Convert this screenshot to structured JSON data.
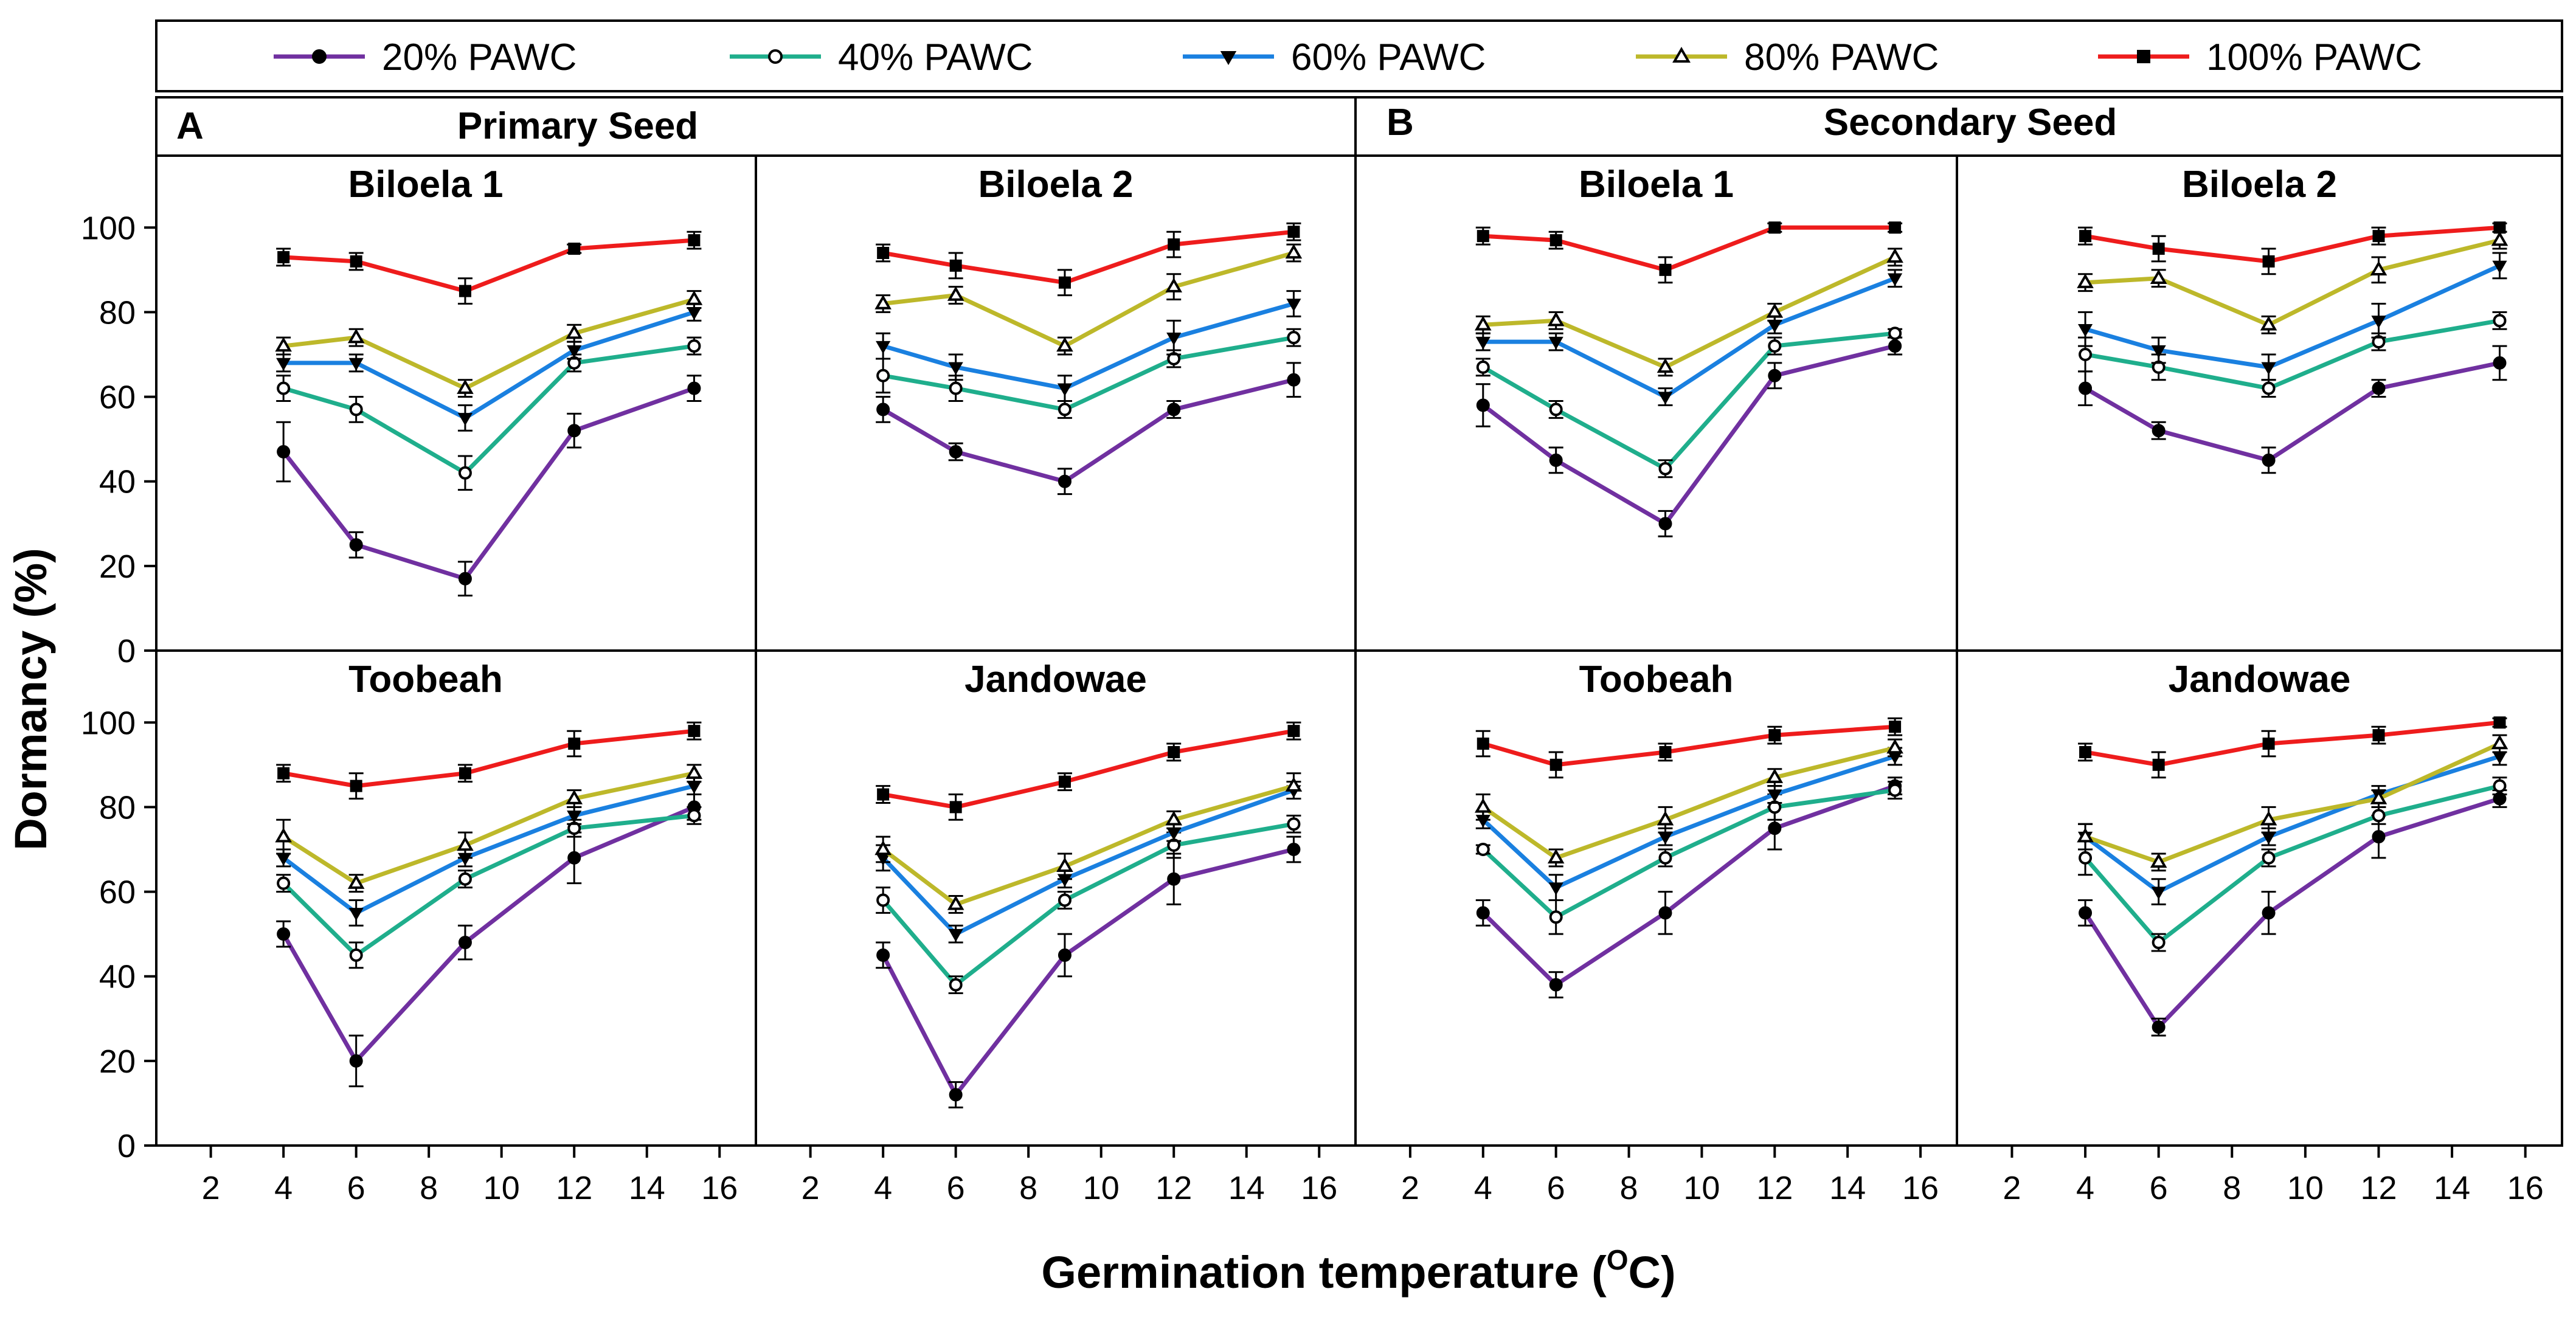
{
  "figure": {
    "ylabel": "Dormancy (%)",
    "xlabel_main": "Germination temperature (",
    "xlabel_sup": "O",
    "xlabel_end": "C)"
  },
  "legend": [
    {
      "label": "20% PAWC",
      "color": "#7030a0",
      "marker": "filled-circle"
    },
    {
      "label": "40% PAWC",
      "color": "#1fae8c",
      "marker": "open-circle"
    },
    {
      "label": "60% PAWC",
      "color": "#1a80e0",
      "marker": "filled-triangle-down"
    },
    {
      "label": "80% PAWC",
      "color": "#bdb82a",
      "marker": "open-triangle-up"
    },
    {
      "label": "100% PAWC",
      "color": "#ee1c1c",
      "marker": "filled-square"
    }
  ],
  "sections": [
    {
      "letter": "A",
      "title": "Primary Seed"
    },
    {
      "letter": "B",
      "title": "Secondary Seed"
    }
  ],
  "chart_data": {
    "type": "line",
    "x": [
      4,
      6,
      9,
      12,
      15.3
    ],
    "xlim": [
      0.5,
      17
    ],
    "xticks": [
      2,
      4,
      6,
      8,
      10,
      12,
      14,
      16
    ],
    "ylim": [
      0,
      117
    ],
    "yticks": [
      0,
      20,
      40,
      60,
      80,
      100
    ],
    "xlabel": "Germination temperature (OC)",
    "ylabel": "Dormancy (%)",
    "series_names": [
      "20% PAWC",
      "40% PAWC",
      "60% PAWC",
      "80% PAWC",
      "100% PAWC"
    ],
    "panels": [
      {
        "title": "Biloela 1",
        "section": "Primary Seed",
        "col": 0,
        "row": 0,
        "series": [
          {
            "name": "20% PAWC",
            "values": [
              47,
              25,
              17,
              52,
              62
            ],
            "errors": [
              7,
              3,
              4,
              4,
              3
            ]
          },
          {
            "name": "40% PAWC",
            "values": [
              62,
              57,
              42,
              68,
              72
            ],
            "errors": [
              3,
              3,
              4,
              2,
              2
            ]
          },
          {
            "name": "60% PAWC",
            "values": [
              68,
              68,
              55,
              71,
              80
            ],
            "errors": [
              2,
              2,
              3,
              2,
              2
            ]
          },
          {
            "name": "80% PAWC",
            "values": [
              72,
              74,
              62,
              75,
              83
            ],
            "errors": [
              2,
              2,
              2,
              2,
              2
            ]
          },
          {
            "name": "100% PAWC",
            "values": [
              93,
              92,
              85,
              95,
              97
            ],
            "errors": [
              2,
              2,
              3,
              1,
              2
            ]
          }
        ]
      },
      {
        "title": "Biloela 2",
        "section": "Primary Seed",
        "col": 1,
        "row": 0,
        "series": [
          {
            "name": "20% PAWC",
            "values": [
              57,
              47,
              40,
              57,
              64
            ],
            "errors": [
              3,
              2,
              3,
              2,
              4
            ]
          },
          {
            "name": "40% PAWC",
            "values": [
              65,
              62,
              57,
              69,
              74
            ],
            "errors": [
              4,
              3,
              2,
              2,
              2
            ]
          },
          {
            "name": "60% PAWC",
            "values": [
              72,
              67,
              62,
              74,
              82
            ],
            "errors": [
              3,
              3,
              3,
              4,
              3
            ]
          },
          {
            "name": "80% PAWC",
            "values": [
              82,
              84,
              72,
              86,
              94
            ],
            "errors": [
              2,
              2,
              2,
              3,
              2
            ]
          },
          {
            "name": "100% PAWC",
            "values": [
              94,
              91,
              87,
              96,
              99
            ],
            "errors": [
              2,
              3,
              3,
              3,
              2
            ]
          }
        ]
      },
      {
        "title": "Biloela 1",
        "section": "Secondary Seed",
        "col": 2,
        "row": 0,
        "series": [
          {
            "name": "20% PAWC",
            "values": [
              58,
              45,
              30,
              65,
              72
            ],
            "errors": [
              5,
              3,
              3,
              3,
              2
            ]
          },
          {
            "name": "40% PAWC",
            "values": [
              67,
              57,
              43,
              72,
              75
            ],
            "errors": [
              2,
              2,
              2,
              2,
              1
            ]
          },
          {
            "name": "60% PAWC",
            "values": [
              73,
              73,
              60,
              77,
              88
            ],
            "errors": [
              2,
              2,
              2,
              2,
              2
            ]
          },
          {
            "name": "80% PAWC",
            "values": [
              77,
              78,
              67,
              80,
              93
            ],
            "errors": [
              2,
              2,
              2,
              2,
              2
            ]
          },
          {
            "name": "100% PAWC",
            "values": [
              98,
              97,
              90,
              100,
              100
            ],
            "errors": [
              2,
              2,
              3,
              1,
              1
            ]
          }
        ]
      },
      {
        "title": "Biloela 2",
        "section": "Secondary Seed",
        "col": 3,
        "row": 0,
        "series": [
          {
            "name": "20% PAWC",
            "values": [
              62,
              52,
              45,
              62,
              68
            ],
            "errors": [
              4,
              2,
              3,
              2,
              4
            ]
          },
          {
            "name": "40% PAWC",
            "values": [
              70,
              67,
              62,
              73,
              78
            ],
            "errors": [
              4,
              3,
              2,
              2,
              2
            ]
          },
          {
            "name": "60% PAWC",
            "values": [
              76,
              71,
              67,
              78,
              91
            ],
            "errors": [
              4,
              3,
              3,
              4,
              3
            ]
          },
          {
            "name": "80% PAWC",
            "values": [
              87,
              88,
              77,
              90,
              97
            ],
            "errors": [
              2,
              2,
              2,
              3,
              2
            ]
          },
          {
            "name": "100% PAWC",
            "values": [
              98,
              95,
              92,
              98,
              100
            ],
            "errors": [
              2,
              3,
              3,
              2,
              1
            ]
          }
        ]
      },
      {
        "title": "Toobeah",
        "section": "Primary Seed",
        "col": 0,
        "row": 1,
        "series": [
          {
            "name": "20% PAWC",
            "values": [
              50,
              20,
              48,
              68,
              80
            ],
            "errors": [
              3,
              6,
              4,
              6,
              3
            ]
          },
          {
            "name": "40% PAWC",
            "values": [
              62,
              45,
              63,
              75,
              78
            ],
            "errors": [
              2,
              3,
              2,
              2,
              2
            ]
          },
          {
            "name": "60% PAWC",
            "values": [
              68,
              55,
              68,
              78,
              85
            ],
            "errors": [
              2,
              3,
              2,
              2,
              2
            ]
          },
          {
            "name": "80% PAWC",
            "values": [
              73,
              62,
              71,
              82,
              88
            ],
            "errors": [
              4,
              2,
              3,
              2,
              2
            ]
          },
          {
            "name": "100% PAWC",
            "values": [
              88,
              85,
              88,
              95,
              98
            ],
            "errors": [
              2,
              3,
              2,
              3,
              2
            ]
          }
        ]
      },
      {
        "title": "Jandowae",
        "section": "Primary Seed",
        "col": 1,
        "row": 1,
        "series": [
          {
            "name": "20% PAWC",
            "values": [
              45,
              12,
              45,
              63,
              70
            ],
            "errors": [
              3,
              3,
              5,
              6,
              3
            ]
          },
          {
            "name": "40% PAWC",
            "values": [
              58,
              38,
              58,
              71,
              76
            ],
            "errors": [
              3,
              2,
              2,
              3,
              2
            ]
          },
          {
            "name": "60% PAWC",
            "values": [
              68,
              50,
              63,
              74,
              84
            ],
            "errors": [
              3,
              2,
              2,
              2,
              2
            ]
          },
          {
            "name": "80% PAWC",
            "values": [
              70,
              57,
              66,
              77,
              85
            ],
            "errors": [
              3,
              2,
              3,
              2,
              3
            ]
          },
          {
            "name": "100% PAWC",
            "values": [
              83,
              80,
              86,
              93,
              98
            ],
            "errors": [
              2,
              3,
              2,
              2,
              2
            ]
          }
        ]
      },
      {
        "title": "Toobeah",
        "section": "Secondary Seed",
        "col": 2,
        "row": 1,
        "series": [
          {
            "name": "20% PAWC",
            "values": [
              55,
              38,
              55,
              75,
              85
            ],
            "errors": [
              3,
              3,
              5,
              5,
              2
            ]
          },
          {
            "name": "40% PAWC",
            "values": [
              70,
              54,
              68,
              80,
              84
            ],
            "errors": [
              1,
              4,
              2,
              3,
              2
            ]
          },
          {
            "name": "60% PAWC",
            "values": [
              77,
              61,
              73,
              83,
              92
            ],
            "errors": [
              2,
              3,
              2,
              2,
              2
            ]
          },
          {
            "name": "80% PAWC",
            "values": [
              80,
              68,
              77,
              87,
              94
            ],
            "errors": [
              3,
              2,
              3,
              2,
              2
            ]
          },
          {
            "name": "100% PAWC",
            "values": [
              95,
              90,
              93,
              97,
              99
            ],
            "errors": [
              3,
              3,
              2,
              2,
              2
            ]
          }
        ]
      },
      {
        "title": "Jandowae",
        "section": "Secondary Seed",
        "col": 3,
        "row": 1,
        "series": [
          {
            "name": "20% PAWC",
            "values": [
              55,
              28,
              55,
              73,
              82
            ],
            "errors": [
              3,
              2,
              5,
              5,
              2
            ]
          },
          {
            "name": "40% PAWC",
            "values": [
              68,
              48,
              68,
              78,
              85
            ],
            "errors": [
              4,
              2,
              2,
              2,
              2
            ]
          },
          {
            "name": "60% PAWC",
            "values": [
              73,
              60,
              73,
              83,
              92
            ],
            "errors": [
              3,
              3,
              2,
              2,
              2
            ]
          },
          {
            "name": "80% PAWC",
            "values": [
              73,
              67,
              77,
              82,
              95
            ],
            "errors": [
              3,
              2,
              3,
              2,
              2
            ]
          },
          {
            "name": "100% PAWC",
            "values": [
              93,
              90,
              95,
              97,
              100
            ],
            "errors": [
              2,
              3,
              3,
              2,
              1
            ]
          }
        ]
      }
    ]
  }
}
